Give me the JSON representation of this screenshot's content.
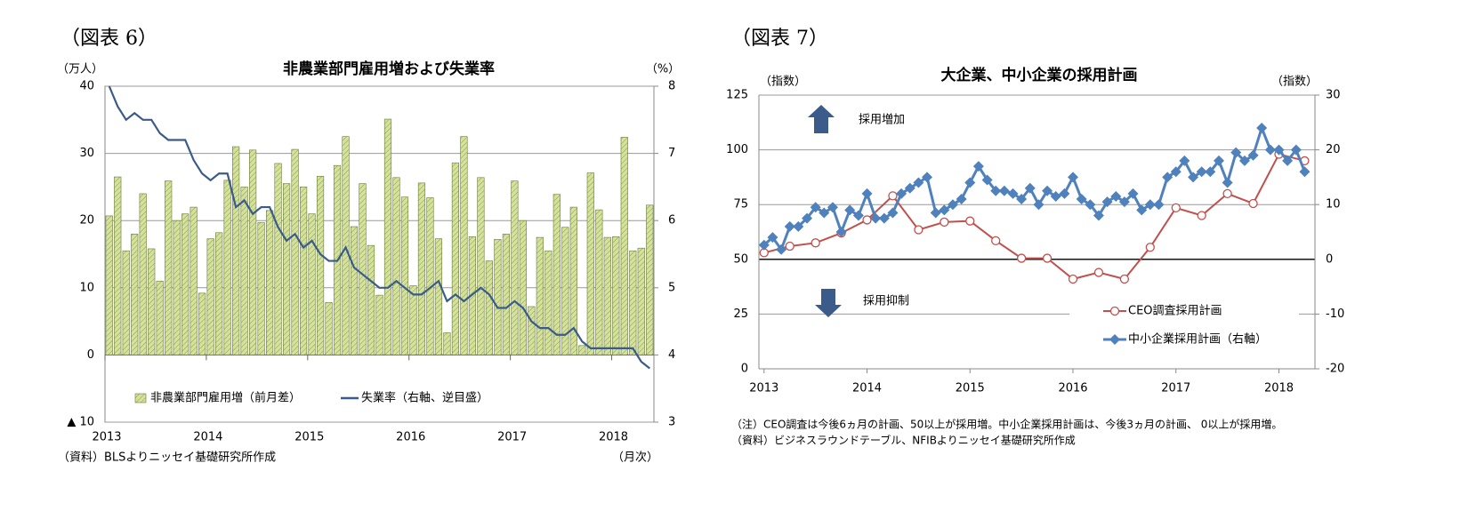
{
  "chart_data": [
    {
      "type": "bar",
      "label": "（図表 6）",
      "title": "非農業部門雇用増および失業率",
      "y_unit": "（万人）",
      "y2_unit": "（%）",
      "x_unit": "（月次）",
      "source": "（資料）BLSよりニッセイ基礎研究所作成",
      "categories": [
        "2013",
        null,
        null,
        null,
        null,
        null,
        null,
        null,
        null,
        null,
        null,
        null,
        "2014",
        null,
        null,
        null,
        null,
        null,
        null,
        null,
        null,
        null,
        null,
        null,
        "2015",
        null,
        null,
        null,
        null,
        null,
        null,
        null,
        null,
        null,
        null,
        null,
        "2016",
        null,
        null,
        null,
        null,
        null,
        null,
        null,
        null,
        null,
        null,
        null,
        "2017",
        null,
        null,
        null,
        null,
        null,
        null,
        null,
        null,
        null,
        null,
        null,
        "2018",
        null,
        null,
        null,
        null
      ],
      "series": [
        {
          "name": "非農業部門雇用増（前月差）",
          "type": "bar",
          "color": "#d4e29c",
          "values": [
            20.7,
            26.5,
            15.5,
            18,
            24,
            15.8,
            11,
            25.9,
            20,
            21,
            22,
            9.2,
            17.3,
            18.2,
            26,
            31,
            25,
            30.5,
            19.7,
            21.5,
            28.5,
            25.5,
            30.6,
            25,
            21,
            26.6,
            7.8,
            28.2,
            32.5,
            19.1,
            25.5,
            16.3,
            8.9,
            35.1,
            26.4,
            23.5,
            10.3,
            25.6,
            23.4,
            17.3,
            3.3,
            28.6,
            32.5,
            17.6,
            26.4,
            14,
            17.2,
            18,
            25.9,
            20,
            7.2,
            17.5,
            15.5,
            23.9,
            19,
            22,
            1.4,
            27.1,
            21.6,
            17.5,
            17.6,
            32.4,
            15.5,
            15.9,
            22.3
          ]
        },
        {
          "name": "失業率（右軸、逆目盛）",
          "type": "line",
          "axis": "y2",
          "color": "#3b5b8a",
          "values": [
            8.0,
            7.7,
            7.5,
            7.6,
            7.5,
            7.5,
            7.3,
            7.2,
            7.2,
            7.2,
            6.9,
            6.7,
            6.6,
            6.7,
            6.7,
            6.2,
            6.3,
            6.1,
            6.2,
            6.2,
            5.9,
            5.7,
            5.8,
            5.6,
            5.7,
            5.5,
            5.4,
            5.4,
            5.6,
            5.3,
            5.2,
            5.1,
            5.0,
            5.0,
            5.1,
            5.0,
            4.9,
            4.9,
            5.0,
            5.1,
            4.8,
            4.9,
            4.8,
            4.9,
            5.0,
            4.9,
            4.7,
            4.7,
            4.8,
            4.7,
            4.5,
            4.4,
            4.4,
            4.3,
            4.3,
            4.4,
            4.2,
            4.1,
            4.1,
            4.1,
            4.1,
            4.1,
            4.1,
            3.9,
            3.8
          ]
        }
      ],
      "ylim": [
        -10,
        40
      ],
      "yticks": [
        40,
        30,
        20,
        10,
        0,
        {
          "value": -10,
          "label": "▲ 10"
        }
      ],
      "y2lim": [
        3,
        8
      ],
      "y2ticks": [
        8,
        7,
        6,
        5,
        4,
        3
      ],
      "grid": true
    },
    {
      "type": "line",
      "label": "（図表 7）",
      "title": "大企業、中小企業の採用計画",
      "y_unit": "（指数）",
      "y2_unit": "（指数）",
      "annotations": [
        "採用増加",
        "採用抑制"
      ],
      "notes": [
        "（注）CEO調査は今後6ヵ月の計画、50以上が採用増。中小企業採用計画は、今後3ヵ月の計画、 0以上が採用増。",
        "（資料）ビジネスラウンドテーブル、NFIBよりニッセイ基礎研究所作成"
      ],
      "xlim": [
        2012.95,
        2018.35
      ],
      "xticks": [
        2013,
        2014,
        2015,
        2016,
        2017,
        2018
      ],
      "ylim": [
        0,
        125
      ],
      "yticks": [
        0,
        25,
        50,
        75,
        100,
        125
      ],
      "y2lim": [
        -20,
        30
      ],
      "y2ticks": [
        -20,
        -10,
        0,
        10,
        20,
        30
      ],
      "grid": true,
      "series": [
        {
          "name": "CEO調査採用計画",
          "color": "#c0504d",
          "marker": "circle",
          "x": [
            2013,
            2013.25,
            2013.5,
            2013.75,
            2014,
            2014.25,
            2014.5,
            2014.75,
            2015,
            2015.25,
            2015.5,
            2015.75,
            2016,
            2016.25,
            2016.5,
            2016.75,
            2017,
            2017.25,
            2017.5,
            2017.75,
            2018,
            2018.25
          ],
          "values": [
            53,
            56,
            57.5,
            62,
            68,
            79,
            63.5,
            67,
            67.5,
            58.5,
            50.5,
            50.5,
            41,
            44,
            41,
            55.5,
            73.5,
            70,
            80,
            75.5,
            98,
            95
          ]
        },
        {
          "name": "中小企業採用計画（右軸）",
          "color": "#4f81bd",
          "marker": "diamond",
          "axis": "y2",
          "x": [
            2013,
            2013.083,
            2013.167,
            2013.25,
            2013.333,
            2013.417,
            2013.5,
            2013.583,
            2013.667,
            2013.75,
            2013.833,
            2013.917,
            2014,
            2014.083,
            2014.167,
            2014.25,
            2014.333,
            2014.417,
            2014.5,
            2014.583,
            2014.667,
            2014.75,
            2014.833,
            2014.917,
            2015,
            2015.083,
            2015.167,
            2015.25,
            2015.333,
            2015.417,
            2015.5,
            2015.583,
            2015.667,
            2015.75,
            2015.833,
            2015.917,
            2016,
            2016.083,
            2016.167,
            2016.25,
            2016.333,
            2016.417,
            2016.5,
            2016.583,
            2016.667,
            2016.75,
            2016.833,
            2016.917,
            2017,
            2017.083,
            2017.167,
            2017.25,
            2017.333,
            2017.417,
            2017.5,
            2017.583,
            2017.667,
            2017.75,
            2017.833,
            2017.917,
            2018,
            2018.083,
            2018.167,
            2018.25
          ],
          "values": [
            2.6,
            4,
            1.8,
            6,
            6,
            7.5,
            9.5,
            8.5,
            9.5,
            5,
            9,
            8,
            12,
            7.5,
            7.5,
            8.5,
            12,
            13,
            14,
            15,
            8.5,
            9,
            10,
            11,
            14,
            17,
            14.5,
            12.5,
            12.5,
            12,
            11,
            13,
            10,
            12.5,
            11.5,
            12,
            15,
            11,
            10,
            8,
            10.5,
            11.5,
            10.5,
            12,
            9,
            10,
            10,
            15,
            16,
            18,
            15,
            16,
            16,
            18,
            14,
            19.5,
            18,
            19,
            24,
            20,
            20,
            18,
            20,
            16
          ]
        }
      ]
    }
  ]
}
